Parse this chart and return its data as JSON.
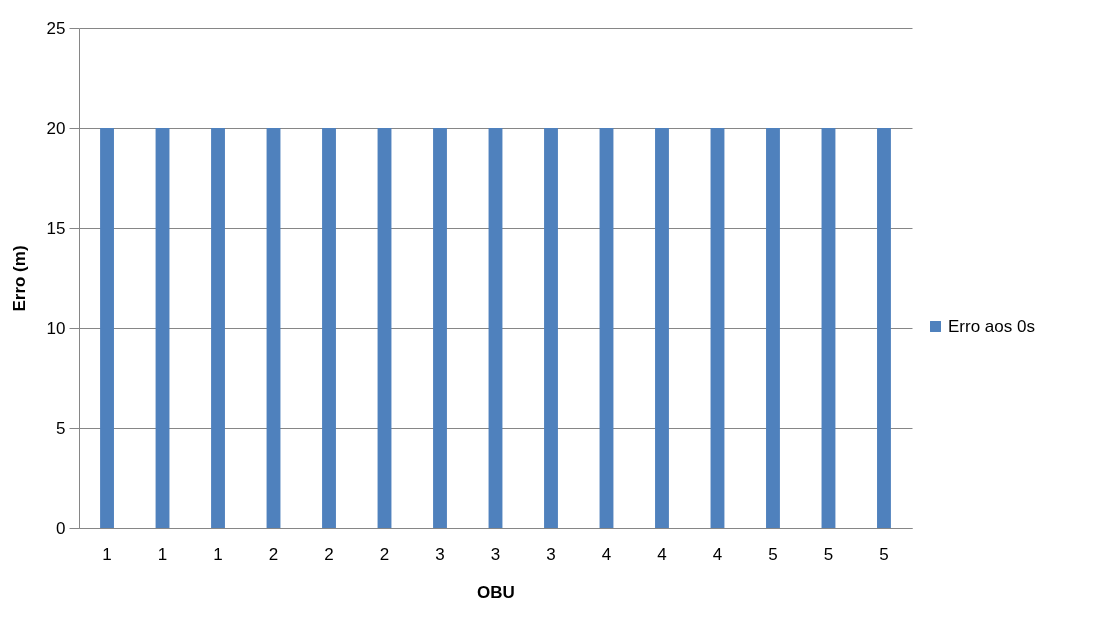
{
  "chart_data": {
    "type": "bar",
    "xlabel": "OBU",
    "ylabel": "Erro (m)",
    "categories": [
      "1",
      "1",
      "1",
      "2",
      "2",
      "2",
      "3",
      "3",
      "3",
      "4",
      "4",
      "4",
      "5",
      "5",
      "5"
    ],
    "series": [
      {
        "name": "Erro aos 0s",
        "color": "#4f81bd",
        "values": [
          20,
          20,
          20,
          20,
          20,
          20,
          20,
          20,
          20,
          20,
          20,
          20,
          20,
          20,
          20
        ]
      }
    ],
    "ylim": [
      0,
      25
    ],
    "yticks": [
      0,
      5,
      10,
      15,
      20,
      25
    ],
    "grid": "y",
    "legend": "right"
  }
}
